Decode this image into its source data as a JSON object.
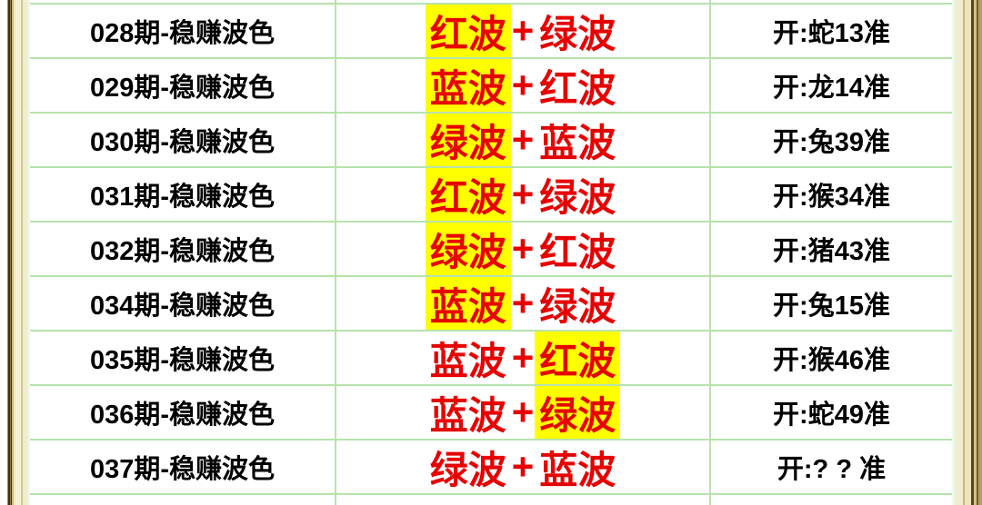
{
  "colors": {
    "wave_text_red": "#e60000",
    "highlight_yellow": "#ffff00",
    "grid_green": "#b7e3ac",
    "frame_dark_brown": "#3f2f12",
    "frame_tan": "#cdbb7d",
    "frame_cream": "#f5f0d6"
  },
  "table": {
    "rows": [
      {
        "period": "028期-稳赚波色",
        "combo": {
          "first": "红波",
          "plus": "+",
          "second": "绿波",
          "highlighted": "first"
        },
        "result": "开:蛇13准"
      },
      {
        "period": "029期-稳赚波色",
        "combo": {
          "first": "蓝波",
          "plus": "+",
          "second": "红波",
          "highlighted": "first"
        },
        "result": "开:龙14准"
      },
      {
        "period": "030期-稳赚波色",
        "combo": {
          "first": "绿波",
          "plus": "+",
          "second": "蓝波",
          "highlighted": "first"
        },
        "result": "开:兔39准"
      },
      {
        "period": "031期-稳赚波色",
        "combo": {
          "first": "红波",
          "plus": "+",
          "second": "绿波",
          "highlighted": "first"
        },
        "result": "开:猴34准"
      },
      {
        "period": "032期-稳赚波色",
        "combo": {
          "first": "绿波",
          "plus": "+",
          "second": "红波",
          "highlighted": "first"
        },
        "result": "开:猪43准"
      },
      {
        "period": "034期-稳赚波色",
        "combo": {
          "first": "蓝波",
          "plus": "+",
          "second": "绿波",
          "highlighted": "first"
        },
        "result": "开:兔15准"
      },
      {
        "period": "035期-稳赚波色",
        "combo": {
          "first": "蓝波",
          "plus": "+",
          "second": "红波",
          "highlighted": "second"
        },
        "result": "开:猴46准"
      },
      {
        "period": "036期-稳赚波色",
        "combo": {
          "first": "蓝波",
          "plus": "+",
          "second": "绿波",
          "highlighted": "second"
        },
        "result": "开:蛇49准"
      },
      {
        "period": "037期-稳赚波色",
        "combo": {
          "first": "绿波",
          "plus": "+",
          "second": "蓝波",
          "highlighted": "none"
        },
        "result": "开:? ? 准"
      }
    ]
  }
}
